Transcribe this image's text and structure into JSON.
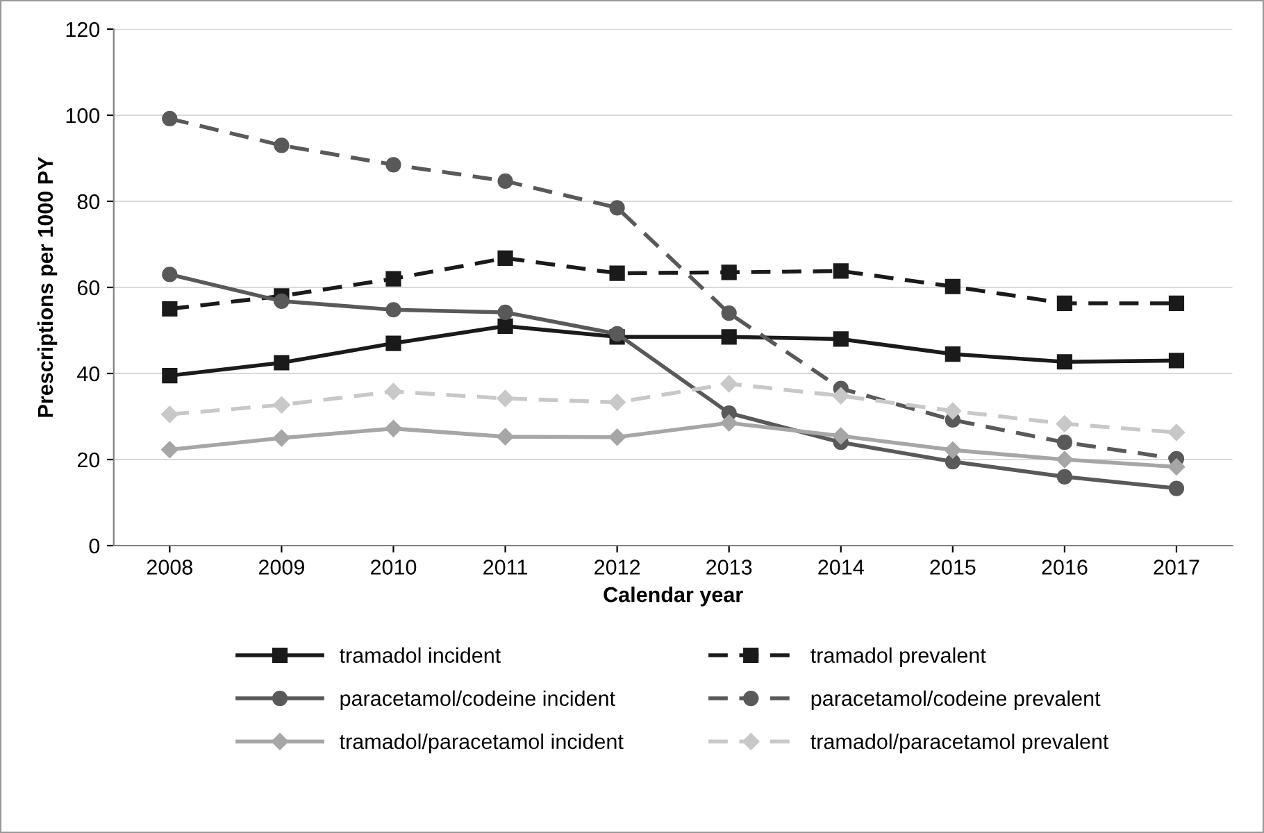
{
  "chart_data": {
    "type": "line",
    "xlabel": "Calendar year",
    "ylabel": "Prescriptions per 1000 PY",
    "categories": [
      "2008",
      "2009",
      "2010",
      "2011",
      "2012",
      "2013",
      "2014",
      "2015",
      "2016",
      "2017"
    ],
    "ylim": [
      0,
      120
    ],
    "yticks": [
      0,
      20,
      40,
      60,
      80,
      100,
      120
    ],
    "grid": "y",
    "legend": "bottom",
    "series": [
      {
        "name": "tramadol incident",
        "color": "#1a1a1a",
        "marker": "square",
        "line_style": "solid",
        "values": [
          39.5,
          42.5,
          47,
          51,
          48.5,
          48.5,
          48,
          44.5,
          42.7,
          43
        ]
      },
      {
        "name": "tramadol prevalent",
        "color": "#1a1a1a",
        "marker": "square",
        "line_style": "dashed",
        "values": [
          55,
          58,
          62,
          66.8,
          63.3,
          63.5,
          63.8,
          60.2,
          56.3,
          56.3
        ]
      },
      {
        "name": "paracetamol/codeine incident",
        "color": "#595959",
        "marker": "circle",
        "line_style": "solid",
        "values": [
          63,
          56.8,
          54.8,
          54.2,
          49.2,
          30.8,
          24,
          19.5,
          16,
          13.3
        ]
      },
      {
        "name": "paracetamol/codeine prevalent",
        "color": "#595959",
        "marker": "circle",
        "line_style": "dashed",
        "values": [
          99.2,
          93,
          88.5,
          84.7,
          78.5,
          54,
          36.5,
          29.2,
          24,
          20.2
        ]
      },
      {
        "name": "tramadol/paracetamol incident",
        "color": "#a6a6a6",
        "marker": "diamond",
        "line_style": "solid",
        "values": [
          22.3,
          25,
          27.2,
          25.3,
          25.2,
          28.5,
          25.5,
          22.2,
          20,
          18.3
        ]
      },
      {
        "name": "tramadol/paracetamol prevalent",
        "color": "#c8c8c8",
        "marker": "diamond",
        "line_style": "dashed",
        "values": [
          30.5,
          32.7,
          35.8,
          34.2,
          33.3,
          37.6,
          34.8,
          31.3,
          28.3,
          26.3
        ]
      }
    ]
  }
}
